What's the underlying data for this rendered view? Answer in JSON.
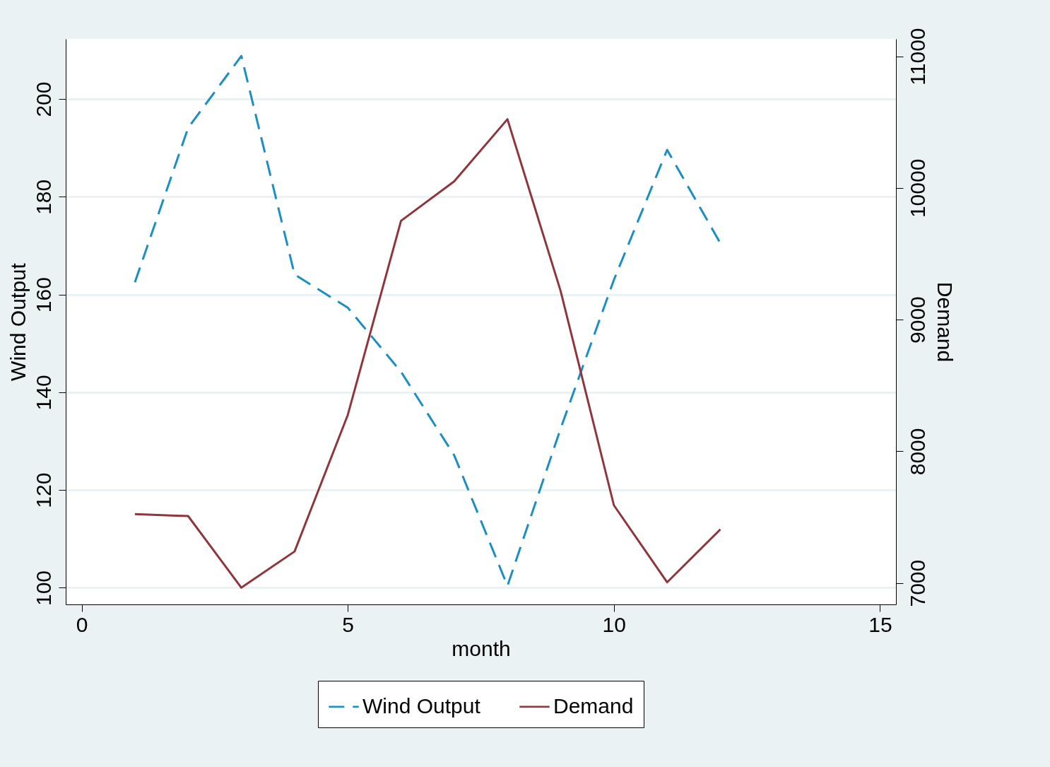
{
  "chart_data": {
    "type": "line",
    "xlabel": "month",
    "ylabel": "Wind Output",
    "y2label": "Demand",
    "x": [
      1,
      2,
      3,
      4,
      5,
      6,
      7,
      8,
      9,
      10,
      11,
      12
    ],
    "series": [
      {
        "name": "Wind Output",
        "color": "#1a8fc4",
        "line_style": "dashed",
        "values": [
          162.5,
          194.1,
          208.8,
          164.1,
          157.3,
          144.2,
          127.1,
          100.4,
          132.6,
          163.0,
          189.6,
          170.5
        ]
      },
      {
        "name": "Demand",
        "color": "#90353b",
        "line_style": "solid",
        "axis": "y2",
        "values": [
          7523,
          7508,
          6964,
          7239,
          8276,
          9750,
          10050,
          10522,
          9216,
          7590,
          7005,
          7407
        ]
      }
    ],
    "xlim": [
      -0.3,
      15.3
    ],
    "xticks": [
      0,
      5,
      10,
      15
    ],
    "ylim": [
      96.6,
      212.3
    ],
    "yticks": [
      100,
      120,
      140,
      160,
      180,
      200
    ],
    "y2lim": [
      6837,
      11132
    ],
    "y2ticks": [
      7000,
      8000,
      9000,
      10000,
      11000
    ],
    "grid": "y",
    "legend": "bottom",
    "marker": "none"
  }
}
